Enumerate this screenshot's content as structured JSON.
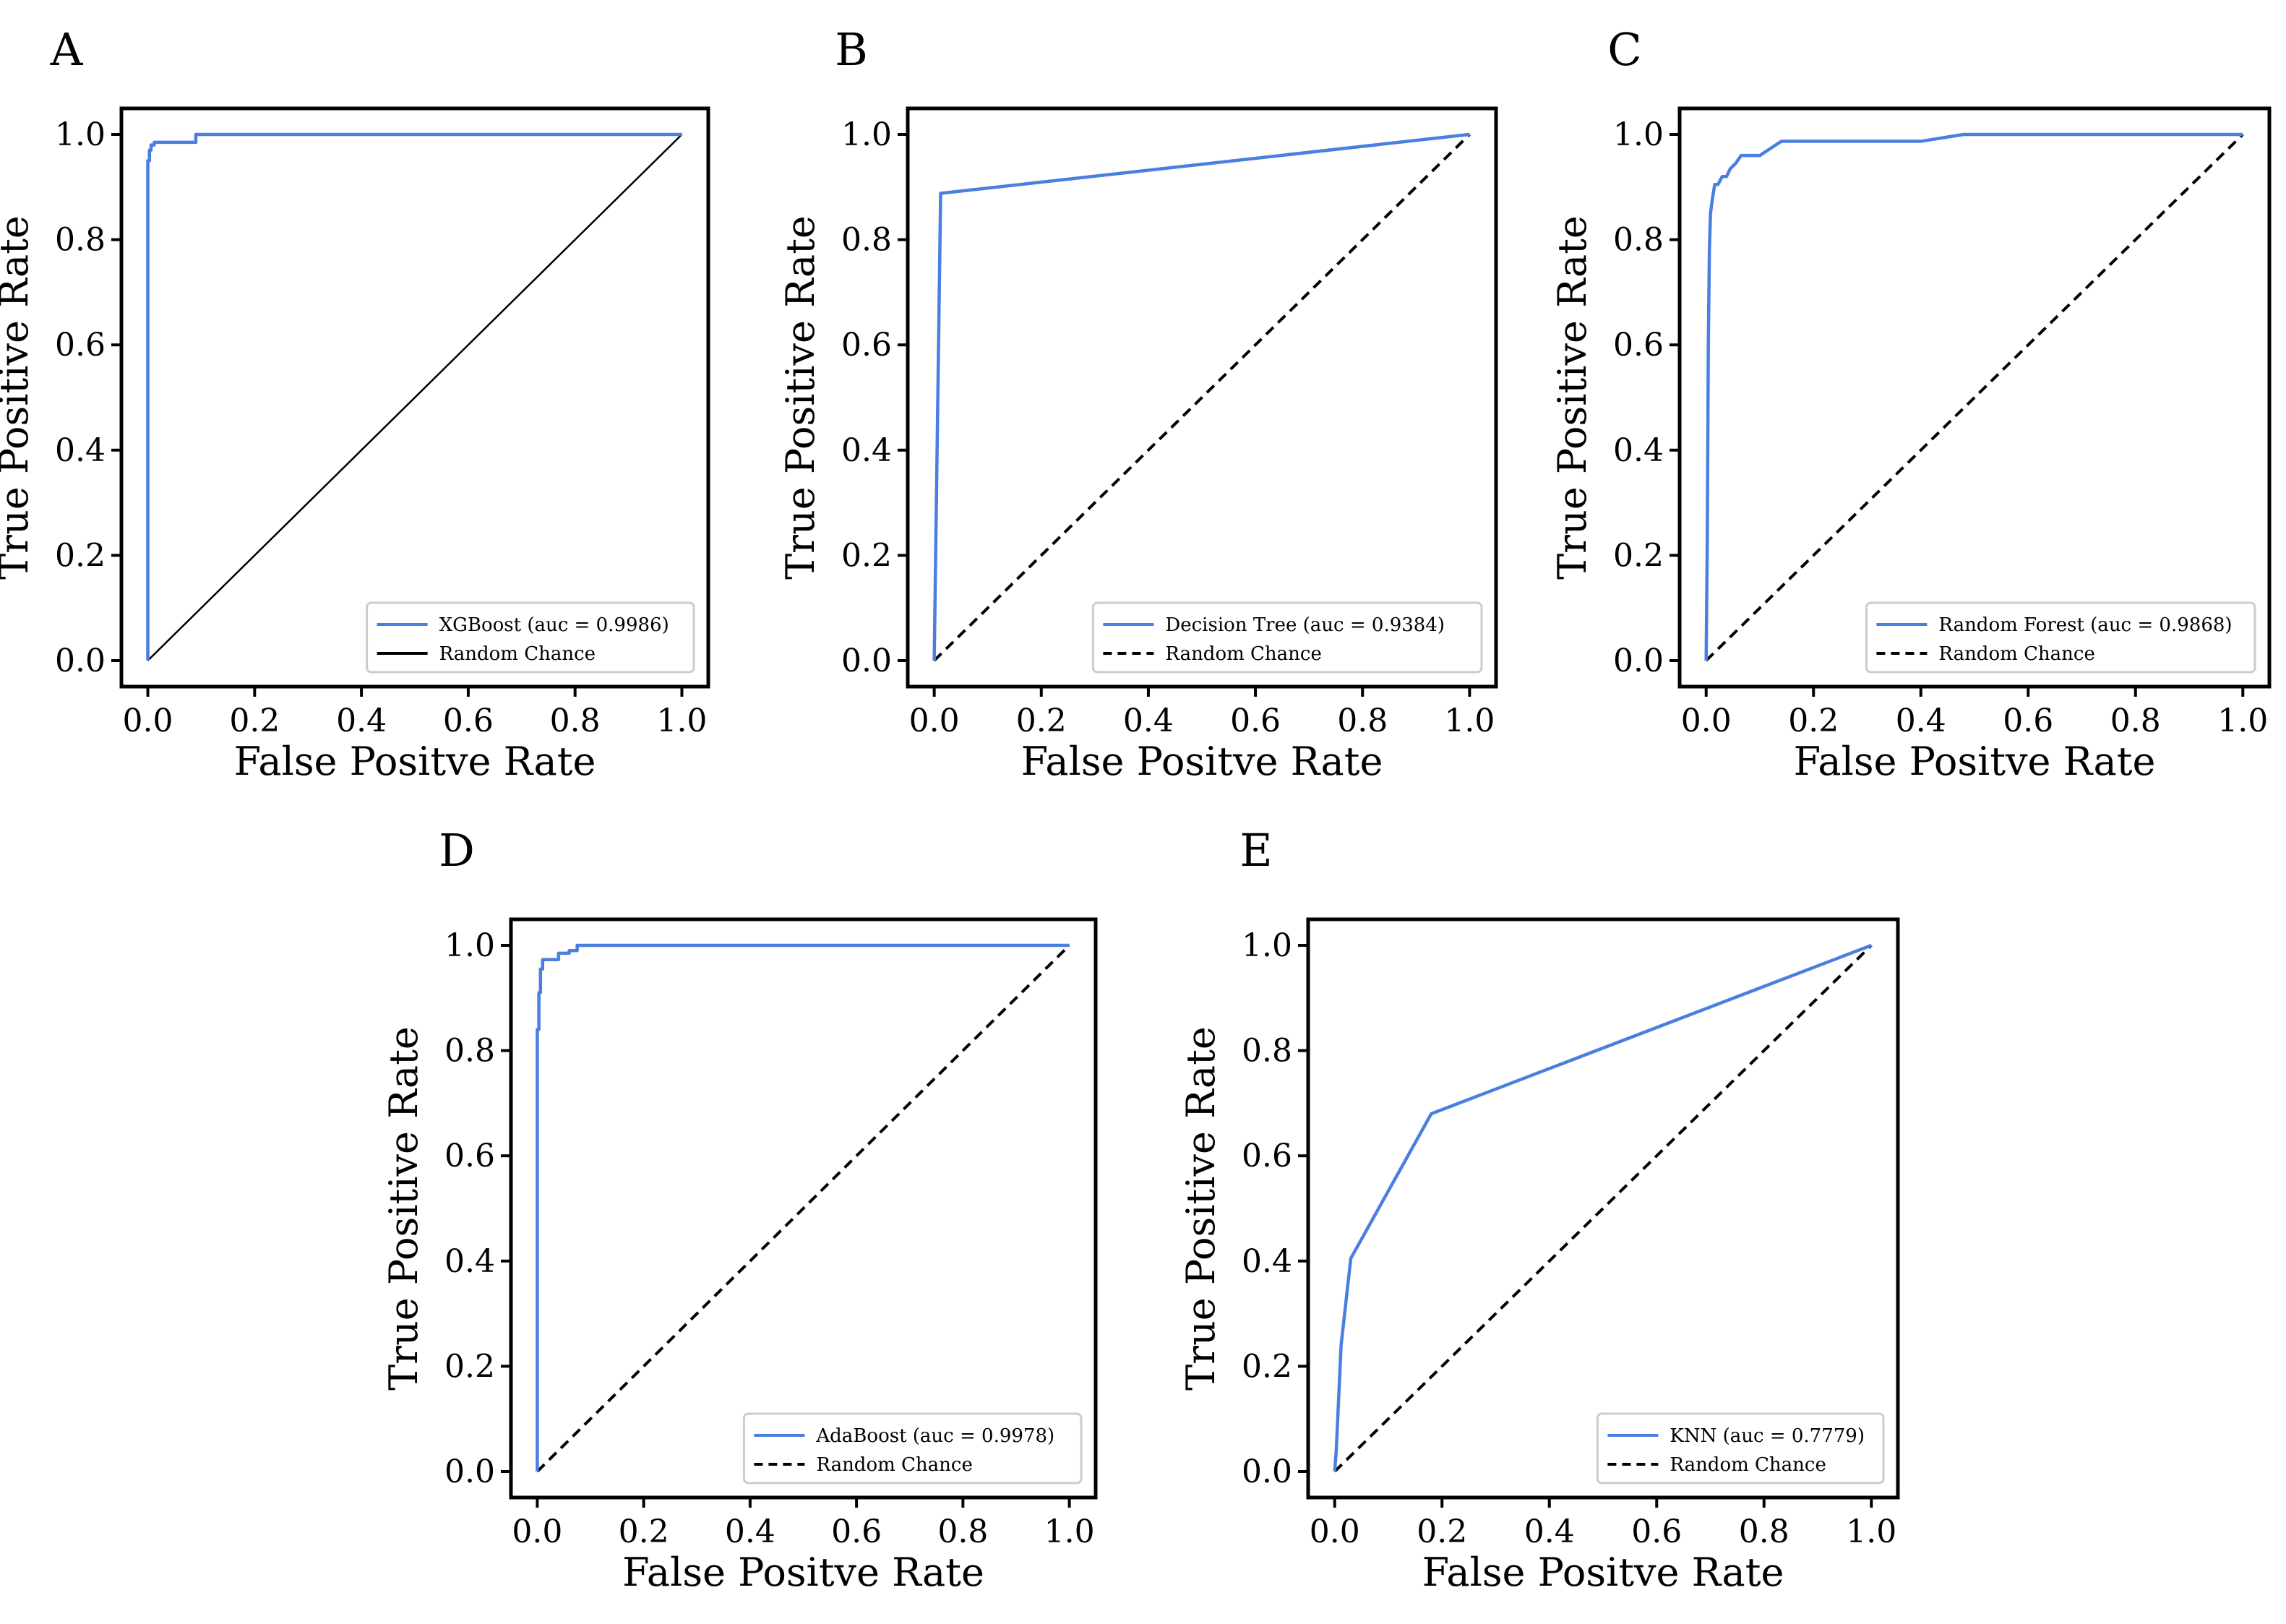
{
  "chart_data": [
    {
      "type": "line",
      "panel_label": "A",
      "xlabel": "False Positve Rate",
      "ylabel": "True Positive Rate",
      "xlim": [
        0,
        1
      ],
      "ylim": [
        0,
        1
      ],
      "xticks": [
        "0.0",
        "0.2",
        "0.4",
        "0.6",
        "0.8",
        "1.0"
      ],
      "yticks": [
        "0.0",
        "0.2",
        "0.4",
        "0.6",
        "0.8",
        "1.0"
      ],
      "legend_position": "bottom-right",
      "grid": false,
      "series": [
        {
          "name": "XGBoost (auc = 0.9986)",
          "color": "#4a7fe0",
          "style": "solid",
          "x": [
            0,
            0,
            0.003,
            0.003,
            0.006,
            0.006,
            0.012,
            0.012,
            0.09,
            0.09,
            1.0
          ],
          "y": [
            0,
            0.95,
            0.95,
            0.97,
            0.97,
            0.98,
            0.98,
            0.985,
            0.985,
            1.0,
            1.0
          ]
        },
        {
          "name": "Random Chance",
          "color": "#000000",
          "style": "solid-thin",
          "x": [
            0,
            1
          ],
          "y": [
            0,
            1
          ]
        }
      ]
    },
    {
      "type": "line",
      "panel_label": "B",
      "xlabel": "False Positve Rate",
      "ylabel": "True Positive Rate",
      "xlim": [
        0,
        1
      ],
      "ylim": [
        0,
        1
      ],
      "xticks": [
        "0.0",
        "0.2",
        "0.4",
        "0.6",
        "0.8",
        "1.0"
      ],
      "yticks": [
        "0.0",
        "0.2",
        "0.4",
        "0.6",
        "0.8",
        "1.0"
      ],
      "legend_position": "bottom-right",
      "grid": false,
      "series": [
        {
          "name": "Decision Tree (auc = 0.9384)",
          "color": "#4a7fe0",
          "style": "solid",
          "x": [
            0,
            0.012,
            1.0
          ],
          "y": [
            0,
            0.888,
            1.0
          ]
        },
        {
          "name": "Random Chance",
          "color": "#000000",
          "style": "dashed",
          "x": [
            0,
            1
          ],
          "y": [
            0,
            1
          ]
        }
      ]
    },
    {
      "type": "line",
      "panel_label": "C",
      "xlabel": "False Positve Rate",
      "ylabel": "True Positive Rate",
      "xlim": [
        0,
        1
      ],
      "ylim": [
        0,
        1
      ],
      "xticks": [
        "0.0",
        "0.2",
        "0.4",
        "0.6",
        "0.8",
        "1.0"
      ],
      "yticks": [
        "0.0",
        "0.2",
        "0.4",
        "0.6",
        "0.8",
        "1.0"
      ],
      "legend_position": "bottom-right",
      "grid": false,
      "series": [
        {
          "name": "Random Forest (auc = 0.9868)",
          "color": "#4a7fe0",
          "style": "solid",
          "x": [
            0,
            0.002,
            0.004,
            0.006,
            0.008,
            0.012,
            0.016,
            0.022,
            0.03,
            0.038,
            0.045,
            0.055,
            0.065,
            0.1,
            0.14,
            0.4,
            0.48,
            1.0
          ],
          "y": [
            0,
            0.22,
            0.6,
            0.78,
            0.85,
            0.88,
            0.905,
            0.905,
            0.92,
            0.92,
            0.935,
            0.945,
            0.96,
            0.96,
            0.987,
            0.987,
            1.0,
            1.0
          ]
        },
        {
          "name": "Random Chance",
          "color": "#000000",
          "style": "dashed",
          "x": [
            0,
            1
          ],
          "y": [
            0,
            1
          ]
        }
      ]
    },
    {
      "type": "line",
      "panel_label": "D",
      "xlabel": "False Positve Rate",
      "ylabel": "True Positive Rate",
      "xlim": [
        0,
        1
      ],
      "ylim": [
        0,
        1
      ],
      "xticks": [
        "0.0",
        "0.2",
        "0.4",
        "0.6",
        "0.8",
        "1.0"
      ],
      "yticks": [
        "0.0",
        "0.2",
        "0.4",
        "0.6",
        "0.8",
        "1.0"
      ],
      "legend_position": "bottom-right",
      "grid": false,
      "series": [
        {
          "name": "AdaBoost (auc = 0.9978)",
          "color": "#4a7fe0",
          "style": "solid",
          "x": [
            0,
            0,
            0.003,
            0.003,
            0.006,
            0.006,
            0.01,
            0.01,
            0.04,
            0.04,
            0.06,
            0.06,
            0.075,
            0.075,
            1.0
          ],
          "y": [
            0,
            0.84,
            0.84,
            0.91,
            0.91,
            0.955,
            0.955,
            0.973,
            0.973,
            0.985,
            0.985,
            0.99,
            0.99,
            1.0,
            1.0
          ]
        },
        {
          "name": "Random Chance",
          "color": "#000000",
          "style": "dashed",
          "x": [
            0,
            1
          ],
          "y": [
            0,
            1
          ]
        }
      ]
    },
    {
      "type": "line",
      "panel_label": "E",
      "xlabel": "False Positve Rate",
      "ylabel": "True Positive Rate",
      "xlim": [
        0,
        1
      ],
      "ylim": [
        0,
        1
      ],
      "xticks": [
        "0.0",
        "0.2",
        "0.4",
        "0.6",
        "0.8",
        "1.0"
      ],
      "yticks": [
        "0.0",
        "0.2",
        "0.4",
        "0.6",
        "0.8",
        "1.0"
      ],
      "legend_position": "bottom-right",
      "grid": false,
      "series": [
        {
          "name": "KNN (auc = 0.7779)",
          "color": "#4a7fe0",
          "style": "solid",
          "x": [
            0,
            0.003,
            0.012,
            0.03,
            0.18,
            1.0
          ],
          "y": [
            0,
            0.04,
            0.24,
            0.405,
            0.68,
            1.0
          ]
        },
        {
          "name": "Random Chance",
          "color": "#000000",
          "style": "dashed",
          "x": [
            0,
            1
          ],
          "y": [
            0,
            1
          ]
        }
      ]
    }
  ]
}
